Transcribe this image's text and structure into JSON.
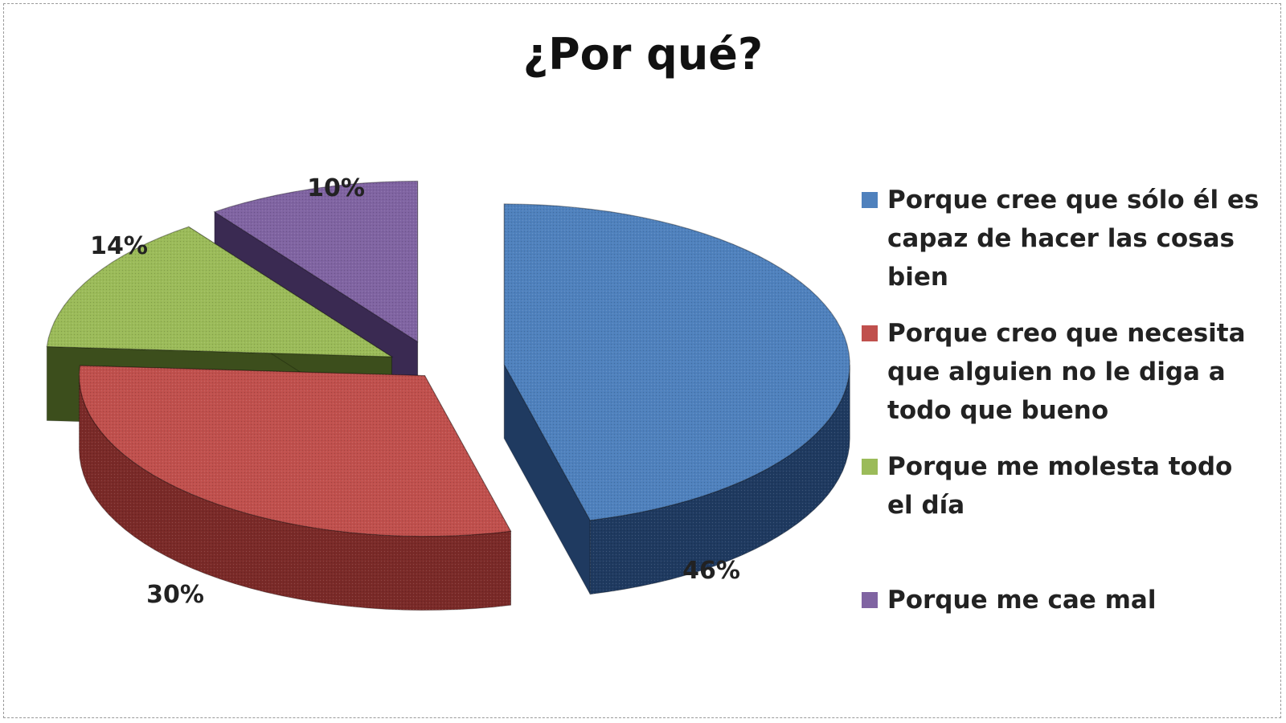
{
  "chart_data": {
    "type": "pie",
    "title": "¿Por qué?",
    "categories": [
      "Porque cree que sólo él es capaz de hacer las cosas bien",
      "Porque creo que necesita que alguien no le diga a todo que bueno",
      "Porque me molesta todo el día",
      "Porque me cae mal"
    ],
    "values": [
      46,
      30,
      14,
      10
    ],
    "labels": [
      "46%",
      "30%",
      "14%",
      "10%"
    ],
    "colors": [
      "#4f81bd",
      "#c0504d",
      "#9bbb59",
      "#8064a2"
    ],
    "side_colors": [
      "#1f3a60",
      "#7a2a28",
      "#3c4e1c",
      "#3a2a52"
    ],
    "exploded": true,
    "three_d": true,
    "legend_position": "right"
  }
}
